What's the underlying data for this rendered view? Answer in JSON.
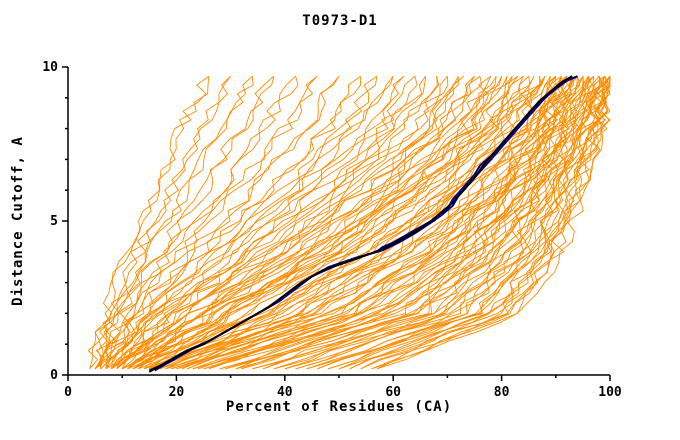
{
  "chart_data": {
    "type": "line",
    "title": "T0973-D1",
    "xlabel": "Percent of Residues (CA)",
    "ylabel": "Distance Cutoff, A",
    "xlim": [
      0,
      100
    ],
    "ylim": [
      0,
      10
    ],
    "x_ticks": [
      0,
      20,
      40,
      60,
      80,
      100
    ],
    "y_ticks": [
      0,
      5,
      10
    ],
    "x_minor_step": 10,
    "y_minor_step": 1,
    "grid": false,
    "legend": "none",
    "colors": {
      "ensemble": "#FF8C00",
      "highlight_blue": "#000080",
      "highlight_black": "#000000",
      "axis": "#000000",
      "background": "#FFFFFF"
    },
    "ensemble_distance_grid": [
      0.2,
      2,
      4,
      6,
      8,
      9.7
    ],
    "ensemble_percent_curves": [
      [
        4,
        7,
        11,
        16,
        21,
        26
      ],
      [
        5,
        8,
        13,
        19,
        25,
        30
      ],
      [
        5,
        9,
        15,
        22,
        28,
        34
      ],
      [
        5,
        10,
        17,
        25,
        32,
        38
      ],
      [
        6,
        11,
        19,
        28,
        36,
        42
      ],
      [
        6,
        12,
        21,
        31,
        40,
        46
      ],
      [
        6,
        13,
        23,
        34,
        44,
        50
      ],
      [
        7,
        14,
        25,
        37,
        48,
        54
      ],
      [
        7,
        15,
        27,
        40,
        51,
        57
      ],
      [
        7,
        16,
        29,
        42,
        53,
        60
      ],
      [
        8,
        17,
        31,
        44,
        56,
        62
      ],
      [
        8,
        18,
        33,
        46,
        58,
        64
      ],
      [
        8,
        19,
        34,
        48,
        60,
        66
      ],
      [
        9,
        20,
        36,
        50,
        62,
        68
      ],
      [
        9,
        21,
        37,
        52,
        64,
        70
      ],
      [
        9,
        22,
        39,
        54,
        66,
        72
      ],
      [
        10,
        23,
        40,
        55,
        67,
        73
      ],
      [
        10,
        24,
        42,
        57,
        69,
        75
      ],
      [
        10,
        25,
        43,
        58,
        70,
        76
      ],
      [
        11,
        26,
        45,
        60,
        72,
        78
      ],
      [
        11,
        27,
        46,
        61,
        73,
        79
      ],
      [
        11,
        28,
        47,
        62,
        74,
        80
      ],
      [
        12,
        29,
        48,
        63,
        75,
        81
      ],
      [
        12,
        30,
        49,
        64,
        76,
        82
      ],
      [
        13,
        31,
        50,
        65,
        77,
        83
      ],
      [
        13,
        33,
        52,
        66,
        78,
        84
      ],
      [
        14,
        34,
        53,
        67,
        79,
        85
      ],
      [
        14,
        36,
        55,
        69,
        80,
        86
      ],
      [
        15,
        37,
        56,
        70,
        81,
        87
      ],
      [
        15,
        39,
        58,
        71,
        82,
        88
      ],
      [
        16,
        40,
        59,
        72,
        83,
        88
      ],
      [
        16,
        42,
        60,
        73,
        84,
        89
      ],
      [
        17,
        43,
        62,
        75,
        85,
        90
      ],
      [
        18,
        45,
        63,
        76,
        85,
        90
      ],
      [
        18,
        46,
        64,
        77,
        86,
        91
      ],
      [
        19,
        48,
        66,
        78,
        87,
        91
      ],
      [
        20,
        49,
        67,
        79,
        87,
        92
      ],
      [
        21,
        51,
        68,
        80,
        88,
        92
      ],
      [
        22,
        52,
        69,
        80,
        88,
        93
      ],
      [
        23,
        54,
        71,
        81,
        89,
        93
      ],
      [
        24,
        55,
        72,
        82,
        89,
        94
      ],
      [
        25,
        57,
        73,
        83,
        90,
        94
      ],
      [
        26,
        58,
        74,
        83,
        90,
        95
      ],
      [
        28,
        60,
        75,
        84,
        91,
        95
      ],
      [
        29,
        61,
        76,
        85,
        91,
        96
      ],
      [
        31,
        63,
        77,
        85,
        92,
        96
      ],
      [
        32,
        64,
        78,
        86,
        92,
        97
      ],
      [
        34,
        66,
        79,
        87,
        93,
        97
      ],
      [
        36,
        67,
        80,
        87,
        93,
        98
      ],
      [
        38,
        69,
        81,
        88,
        94,
        98
      ],
      [
        40,
        70,
        82,
        89,
        94,
        98
      ],
      [
        42,
        72,
        83,
        89,
        95,
        99
      ],
      [
        44,
        73,
        84,
        90,
        95,
        99
      ],
      [
        46,
        75,
        85,
        91,
        96,
        99
      ],
      [
        48,
        76,
        86,
        91,
        96,
        100
      ],
      [
        50,
        78,
        87,
        92,
        97,
        100
      ],
      [
        52,
        79,
        88,
        93,
        97,
        100
      ],
      [
        54,
        80,
        89,
        93,
        98,
        100
      ],
      [
        56,
        82,
        90,
        94,
        98,
        100
      ],
      [
        57,
        83,
        91,
        95,
        99,
        100
      ]
    ],
    "highlight_series": [
      {
        "name": "best-model-navy-2",
        "color": "#000080",
        "points": [
          [
            16,
            0.15
          ],
          [
            18,
            0.35
          ],
          [
            20,
            0.55
          ],
          [
            23,
            0.85
          ],
          [
            27,
            1.2
          ],
          [
            31,
            1.6
          ],
          [
            35,
            2.0
          ],
          [
            39,
            2.4
          ],
          [
            42,
            2.8
          ],
          [
            45,
            3.2
          ],
          [
            50,
            3.6
          ],
          [
            55,
            3.9
          ],
          [
            58,
            4.05
          ],
          [
            61,
            4.3
          ],
          [
            64,
            4.6
          ],
          [
            67,
            4.95
          ],
          [
            69,
            5.2
          ],
          [
            71,
            5.5
          ],
          [
            72,
            5.8
          ],
          [
            74,
            6.2
          ],
          [
            76,
            6.6
          ],
          [
            78,
            7.0
          ],
          [
            80,
            7.4
          ],
          [
            82,
            7.8
          ],
          [
            84,
            8.2
          ],
          [
            86,
            8.6
          ],
          [
            88,
            9.0
          ],
          [
            90,
            9.3
          ],
          [
            92,
            9.55
          ],
          [
            94,
            9.7
          ]
        ]
      },
      {
        "name": "best-model-navy-1",
        "color": "#000080",
        "points": [
          [
            15,
            0.15
          ],
          [
            17,
            0.3
          ],
          [
            19,
            0.5
          ],
          [
            22,
            0.8
          ],
          [
            26,
            1.1
          ],
          [
            30,
            1.5
          ],
          [
            34,
            1.9
          ],
          [
            38,
            2.3
          ],
          [
            41,
            2.7
          ],
          [
            44,
            3.1
          ],
          [
            48,
            3.5
          ],
          [
            53,
            3.8
          ],
          [
            57,
            4.0
          ],
          [
            58,
            4.15
          ],
          [
            60,
            4.3
          ],
          [
            63,
            4.6
          ],
          [
            66,
            4.9
          ],
          [
            68,
            5.1
          ],
          [
            70,
            5.4
          ],
          [
            71,
            5.7
          ],
          [
            73,
            6.1
          ],
          [
            75,
            6.5
          ],
          [
            76,
            6.8
          ],
          [
            78,
            7.1
          ],
          [
            80,
            7.5
          ],
          [
            82,
            7.9
          ],
          [
            84,
            8.3
          ],
          [
            86,
            8.7
          ],
          [
            88,
            9.0
          ],
          [
            90,
            9.3
          ],
          [
            92,
            9.55
          ],
          [
            93,
            9.7
          ]
        ]
      },
      {
        "name": "best-model-black",
        "color": "#000000",
        "points": [
          [
            15,
            0.1
          ],
          [
            18,
            0.4
          ],
          [
            21,
            0.7
          ],
          [
            25,
            1.0
          ],
          [
            29,
            1.4
          ],
          [
            33,
            1.8
          ],
          [
            37,
            2.2
          ],
          [
            40,
            2.6
          ],
          [
            43,
            3.0
          ],
          [
            47,
            3.4
          ],
          [
            52,
            3.7
          ],
          [
            56,
            3.95
          ],
          [
            58,
            4.1
          ],
          [
            61,
            4.35
          ],
          [
            64,
            4.65
          ],
          [
            67,
            5.0
          ],
          [
            69,
            5.3
          ],
          [
            71,
            5.6
          ],
          [
            73,
            6.0
          ],
          [
            75,
            6.4
          ],
          [
            77,
            6.9
          ],
          [
            79,
            7.3
          ],
          [
            81,
            7.7
          ],
          [
            83,
            8.1
          ],
          [
            85,
            8.5
          ],
          [
            87,
            8.9
          ],
          [
            89,
            9.2
          ],
          [
            91,
            9.5
          ],
          [
            93,
            9.7
          ]
        ]
      }
    ]
  }
}
